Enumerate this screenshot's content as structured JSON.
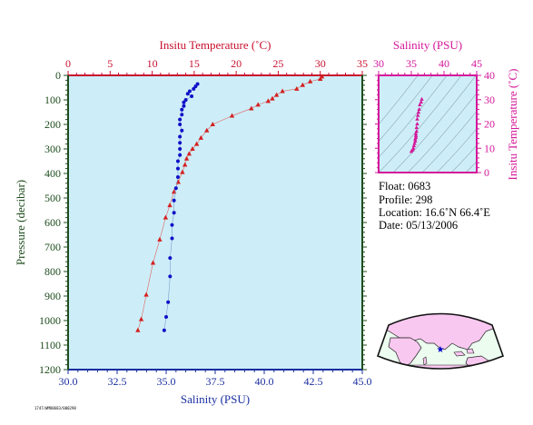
{
  "chart_data": {
    "type": "line",
    "profile_plot": {
      "top_axis_label": "Insitu Temperature (˚C)",
      "bottom_axis_label": "Salinity (PSU)",
      "left_axis_label": "Pressure (decibar)",
      "temperature_range": [
        0,
        35
      ],
      "temperature_ticks": [
        "0",
        "5",
        "10",
        "15",
        "20",
        "25",
        "30",
        "35"
      ],
      "salinity_range": [
        30.0,
        45.0
      ],
      "salinity_ticks": [
        "30.0",
        "32.5",
        "35.0",
        "37.5",
        "40.0",
        "42.5",
        "45.0"
      ],
      "pressure_range": [
        0,
        1200
      ],
      "pressure_ticks": [
        "0",
        "100",
        "200",
        "300",
        "400",
        "500",
        "600",
        "700",
        "800",
        "900",
        "1000",
        "1100",
        "1200"
      ],
      "series": [
        {
          "quantity": "temperature",
          "color": "#d42020",
          "points": [
            [
              30.2,
              5
            ],
            [
              30.0,
              15
            ],
            [
              28.8,
              25
            ],
            [
              27.9,
              40
            ],
            [
              27.2,
              55
            ],
            [
              25.5,
              65
            ],
            [
              24.8,
              80
            ],
            [
              24.3,
              95
            ],
            [
              23.8,
              105
            ],
            [
              22.6,
              120
            ],
            [
              21.8,
              135
            ],
            [
              19.5,
              165
            ],
            [
              17.2,
              200
            ],
            [
              16.5,
              225
            ],
            [
              15.8,
              255
            ],
            [
              15.3,
              280
            ],
            [
              14.8,
              300
            ],
            [
              14.4,
              320
            ],
            [
              14.1,
              340
            ],
            [
              13.9,
              365
            ],
            [
              13.6,
              395
            ],
            [
              13.1,
              435
            ],
            [
              12.6,
              475
            ],
            [
              12.1,
              530
            ],
            [
              11.6,
              580
            ],
            [
              10.9,
              670
            ],
            [
              10.1,
              765
            ],
            [
              9.3,
              895
            ],
            [
              8.7,
              995
            ],
            [
              8.3,
              1040
            ]
          ]
        },
        {
          "quantity": "salinity",
          "color": "#1010c8",
          "points": [
            [
              36.6,
              35
            ],
            [
              36.5,
              45
            ],
            [
              36.4,
              55
            ],
            [
              36.2,
              65
            ],
            [
              36.1,
              75
            ],
            [
              36.3,
              85
            ],
            [
              36.0,
              100
            ],
            [
              35.9,
              110
            ],
            [
              35.9,
              125
            ],
            [
              35.8,
              140
            ],
            [
              35.8,
              160
            ],
            [
              35.7,
              180
            ],
            [
              35.7,
              200
            ],
            [
              35.8,
              225
            ],
            [
              35.7,
              250
            ],
            [
              35.7,
              275
            ],
            [
              35.7,
              300
            ],
            [
              35.7,
              325
            ],
            [
              35.6,
              350
            ],
            [
              35.6,
              380
            ],
            [
              35.6,
              415
            ],
            [
              35.5,
              460
            ],
            [
              35.4,
              510
            ],
            [
              35.4,
              560
            ],
            [
              35.3,
              610
            ],
            [
              35.3,
              665
            ],
            [
              35.2,
              745
            ],
            [
              35.2,
              820
            ],
            [
              35.1,
              925
            ],
            [
              35.0,
              985
            ],
            [
              34.9,
              1040
            ]
          ]
        }
      ]
    },
    "ts_plot": {
      "top_axis_label": "Salinity (PSU)",
      "right_axis_label": "Insitu Temperature (˚C)",
      "salinity_range": [
        30,
        45
      ],
      "salinity_ticks": [
        "30",
        "35",
        "40",
        "45"
      ],
      "temperature_range": [
        0,
        40
      ],
      "temperature_ticks": [
        "0",
        "10",
        "20",
        "30",
        "40"
      ],
      "series": [
        {
          "quantity": "salinity vs temperature",
          "color": "#d4179a",
          "points": [
            [
              36.6,
              30.2
            ],
            [
              36.5,
              29.0
            ],
            [
              36.3,
              27.9
            ],
            [
              36.2,
              26.0
            ],
            [
              36.1,
              24.8
            ],
            [
              36.0,
              23.5
            ],
            [
              35.9,
              22.0
            ],
            [
              35.9,
              20.0
            ],
            [
              35.8,
              18.5
            ],
            [
              35.8,
              17.0
            ],
            [
              35.7,
              16.0
            ],
            [
              35.7,
              15.2
            ],
            [
              35.7,
              14.5
            ],
            [
              35.6,
              13.8
            ],
            [
              35.6,
              13.0
            ],
            [
              35.5,
              12.0
            ],
            [
              35.4,
              11.0
            ],
            [
              35.3,
              10.0
            ],
            [
              35.2,
              9.3
            ],
            [
              35.0,
              8.7
            ]
          ]
        }
      ]
    }
  },
  "float_info": {
    "float_line": "Float:  0683",
    "profile_line": "Profile:  298",
    "location_line": "Location:  16.6˚N  66.4˚E",
    "date_line": "Date:  05/13/2006"
  },
  "colors": {
    "plot_background": "#cdeef8",
    "temperature_axis": "#c8102e",
    "salinity_axis": "#1a2fa0",
    "pressure_axis": "#1e4d1e",
    "ts_axis": "#d4179a",
    "land": "#f9c8f0",
    "ocean": "#ecfdf0",
    "float_marker": "#0000cc"
  },
  "footer_code": "1747/WMO0683/000298"
}
